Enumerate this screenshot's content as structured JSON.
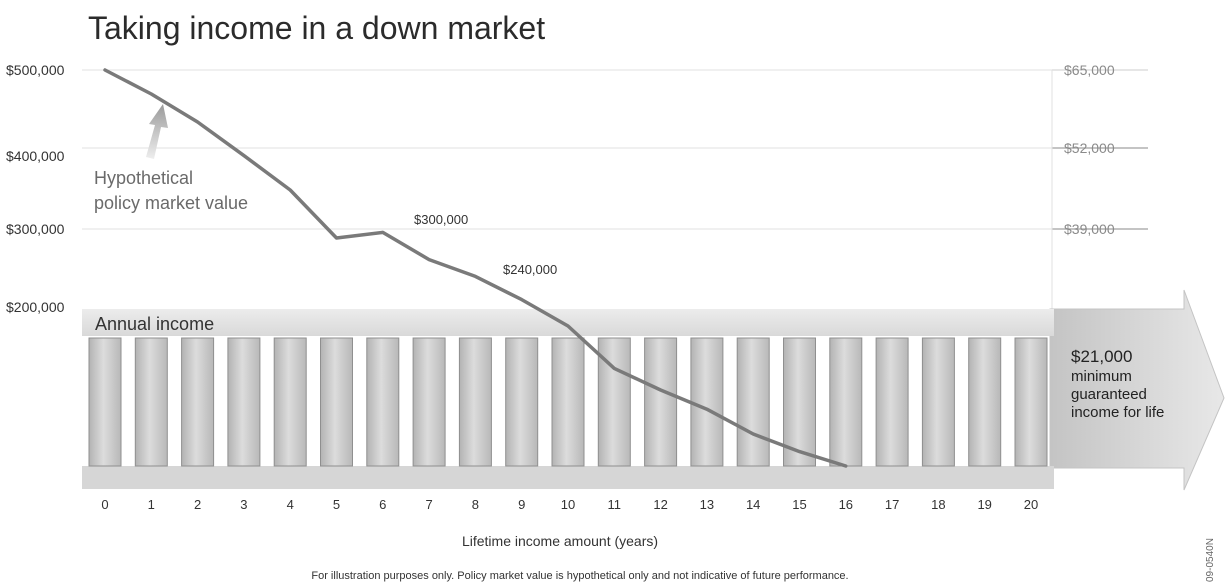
{
  "chart_data": {
    "type": "line",
    "title": "Taking income in a down market",
    "xlabel": "Lifetime income amount (years)",
    "x": [
      0,
      1,
      2,
      3,
      4,
      5,
      6,
      7,
      8,
      9,
      10,
      11,
      12,
      13,
      14,
      15,
      16,
      17,
      18,
      19,
      20
    ],
    "ylim": [
      200000,
      500000
    ],
    "y_left_ticks": [
      "$500,000",
      "$400,000",
      "$300,000",
      "$200,000"
    ],
    "y_right_ticks": [
      "$65,000",
      "$52,000",
      "$39,000"
    ],
    "series": [
      {
        "name": "Hypothetical policy market value",
        "x": [
          0,
          1,
          2,
          3,
          4,
          5,
          6,
          7,
          8,
          9,
          10,
          11,
          12,
          13,
          14,
          15,
          16
        ],
        "values": [
          500000,
          470000,
          435000,
          393000,
          350000,
          290000,
          297000,
          263000,
          242000,
          213000,
          180000,
          127000,
          100000,
          76000,
          45000,
          23000,
          5000
        ]
      }
    ],
    "annual_income_label": "Annual income",
    "annotations": {
      "market_value_label": [
        "Hypothetical",
        "policy market value"
      ],
      "point_label_6": "$300,000",
      "point_label_8": "$240,000",
      "arrow_text": [
        "$21,000",
        "minimum",
        "guaranteed",
        "income for life"
      ]
    },
    "footnote": "For illustration purposes only. Policy market value is hypothetical only and not indicative of future performance.",
    "code": "09-0540N",
    "colors": {
      "line": "#7a7a7a",
      "bar": "#bfbfbf",
      "arrow": "#cfcfcf",
      "text": "#333333",
      "grid": "#d9d9d9"
    }
  }
}
